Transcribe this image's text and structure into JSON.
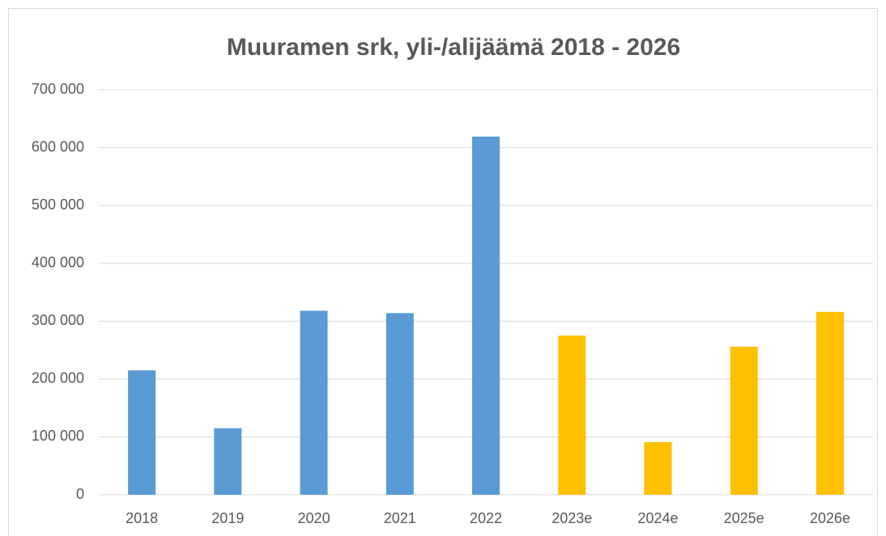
{
  "chart_data": {
    "type": "bar",
    "title": "Muuramen srk, yli-/alijäämä 2018 - 2026",
    "categories": [
      "2018",
      "2019",
      "2020",
      "2021",
      "2022",
      "2023e",
      "2024e",
      "2025e",
      "2026e"
    ],
    "values": [
      215000,
      115000,
      318000,
      314000,
      619000,
      275000,
      91000,
      256000,
      316000
    ],
    "colors": [
      "#5b9bd5",
      "#5b9bd5",
      "#5b9bd5",
      "#5b9bd5",
      "#5b9bd5",
      "#ffc000",
      "#ffc000",
      "#ffc000",
      "#ffc000"
    ],
    "ylim": [
      0,
      700000
    ],
    "yticks": [
      0,
      {
        "value": 100000,
        "label": "100 000"
      },
      {
        "value": 200000,
        "label": "200 000"
      },
      {
        "value": 300000,
        "label": "300 000"
      },
      {
        "value": 400000,
        "label": "400 000"
      },
      {
        "value": 500000,
        "label": "500 000"
      },
      {
        "value": 600000,
        "label": "600 000"
      },
      {
        "value": 700000,
        "label": "700 000"
      }
    ],
    "grid": true
  }
}
